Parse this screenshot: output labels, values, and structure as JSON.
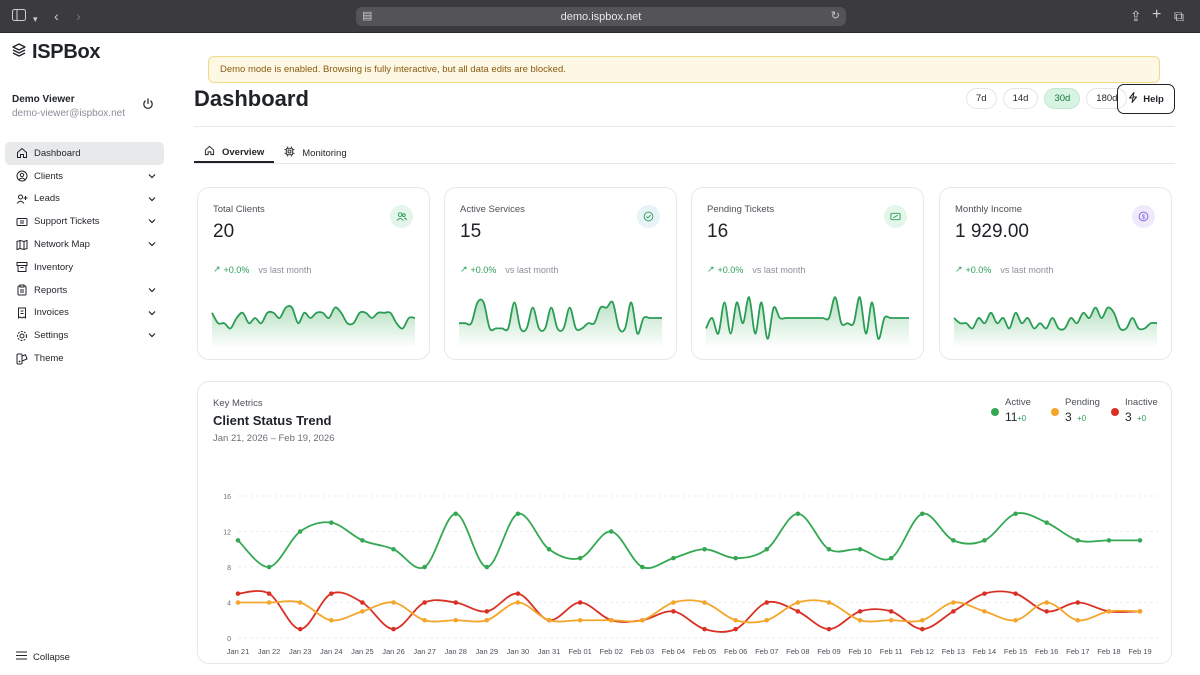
{
  "browser": {
    "url": "demo.ispbox.net"
  },
  "app": {
    "name": "ISPBox"
  },
  "user": {
    "name": "Demo Viewer",
    "email": "demo-viewer@ispbox.net"
  },
  "sidebar": {
    "items": [
      {
        "label": "Dashboard",
        "icon": "home-icon",
        "expandable": false,
        "active": true
      },
      {
        "label": "Clients",
        "icon": "user-circle-icon",
        "expandable": true
      },
      {
        "label": "Leads",
        "icon": "user-plus-icon",
        "expandable": true
      },
      {
        "label": "Support Tickets",
        "icon": "ticket-icon",
        "expandable": true
      },
      {
        "label": "Network Map",
        "icon": "map-icon",
        "expandable": true
      },
      {
        "label": "Inventory",
        "icon": "archive-icon",
        "expandable": false
      },
      {
        "label": "Reports",
        "icon": "clipboard-icon",
        "expandable": true
      },
      {
        "label": "Invoices",
        "icon": "invoice-icon",
        "expandable": true
      },
      {
        "label": "Settings",
        "icon": "gear-icon",
        "expandable": true
      },
      {
        "label": "Theme",
        "icon": "palette-icon",
        "expandable": false
      }
    ],
    "collapse_label": "Collapse"
  },
  "banner": {
    "text": "Demo mode is enabled. Browsing is fully interactive, but all data edits are blocked."
  },
  "header": {
    "title": "Dashboard",
    "ranges": [
      "7d",
      "14d",
      "30d",
      "180d"
    ],
    "selected_range": "30d",
    "help_label": "Help"
  },
  "tabs": [
    {
      "label": "Overview",
      "icon": "home-icon",
      "active": true
    },
    {
      "label": "Monitoring",
      "icon": "cpu-icon",
      "active": false
    }
  ],
  "kpis": [
    {
      "label": "Total Clients",
      "value": "20",
      "delta": "+0.0%",
      "vs": "vs last month",
      "icon": "users-icon",
      "accent": "#2a9d55",
      "spark": [
        6,
        4,
        4,
        3,
        5,
        6,
        4,
        5,
        4,
        6,
        6,
        5,
        7,
        7,
        4,
        6,
        5,
        6,
        6,
        5,
        7,
        6,
        4,
        4,
        6,
        6,
        5,
        6,
        6,
        6,
        4,
        3,
        5,
        5
      ]
    },
    {
      "label": "Active Services",
      "value": "15",
      "delta": "+0.0%",
      "vs": "vs last month",
      "icon": "check-circle-icon",
      "accent": "#2a9d55",
      "spark": [
        4,
        4,
        4,
        8,
        8,
        3,
        3,
        3,
        3,
        8,
        3,
        3,
        7,
        3,
        3,
        7,
        3,
        3,
        7,
        3,
        3,
        4,
        4,
        7,
        7,
        8,
        3,
        3,
        8,
        2,
        5,
        5,
        5,
        5
      ]
    },
    {
      "label": "Pending Tickets",
      "value": "16",
      "delta": "+0.0%",
      "vs": "vs last month",
      "icon": "ticket-icon",
      "accent": "#2a9d55",
      "spark": [
        3,
        5,
        2,
        8,
        2,
        8,
        4,
        9,
        2,
        8,
        1,
        7,
        5,
        5,
        5,
        5,
        5,
        5,
        5,
        5,
        5,
        9,
        4,
        4,
        4,
        9,
        2,
        8,
        1,
        5,
        5,
        5,
        5,
        5
      ]
    },
    {
      "label": "Monthly Income",
      "value": "1 929.00",
      "delta": "+0.0%",
      "vs": "vs last month",
      "icon": "dollar-circle-icon",
      "accent": "#7c5cdb",
      "spark": [
        5,
        4,
        4,
        3,
        5,
        4,
        6,
        4,
        5,
        3,
        6,
        4,
        5,
        3,
        4,
        3,
        5,
        3,
        3,
        5,
        4,
        6,
        5,
        7,
        5,
        7,
        6,
        3,
        3,
        5,
        3,
        3,
        4,
        4
      ]
    }
  ],
  "trend": {
    "kicker": "Key Metrics",
    "title": "Client Status Trend",
    "date_range": "Jan 21, 2026 – Feb 19, 2026",
    "legend": [
      {
        "name": "Active",
        "count": "11",
        "change": "+0",
        "color": "#34a853"
      },
      {
        "name": "Pending",
        "count": "3",
        "change": "+0",
        "color": "#f4a62a"
      },
      {
        "name": "Inactive",
        "count": "3",
        "change": "+0",
        "color": "#d93025"
      }
    ]
  },
  "chart_data": {
    "type": "line",
    "title": "Client Status Trend",
    "x": [
      "Jan 21",
      "Jan 22",
      "Jan 23",
      "Jan 24",
      "Jan 25",
      "Jan 26",
      "Jan 27",
      "Jan 28",
      "Jan 29",
      "Jan 30",
      "Jan 31",
      "Feb 01",
      "Feb 02",
      "Feb 03",
      "Feb 04",
      "Feb 05",
      "Feb 06",
      "Feb 07",
      "Feb 08",
      "Feb 09",
      "Feb 10",
      "Feb 11",
      "Feb 12",
      "Feb 13",
      "Feb 14",
      "Feb 15",
      "Feb 16",
      "Feb 17",
      "Feb 18",
      "Feb 19"
    ],
    "yticks": [
      0,
      4,
      8,
      12,
      16
    ],
    "ylim": [
      0,
      16
    ],
    "series": [
      {
        "name": "Active",
        "color": "#34a853",
        "values": [
          11,
          8,
          12,
          13,
          11,
          10,
          8,
          14,
          8,
          14,
          10,
          9,
          12,
          8,
          9,
          10,
          9,
          10,
          14,
          10,
          10,
          9,
          14,
          11,
          11,
          14,
          13,
          11,
          11,
          11
        ]
      },
      {
        "name": "Pending",
        "color": "#f4a62a",
        "values": [
          4,
          4,
          4,
          2,
          3,
          4,
          2,
          2,
          2,
          4,
          2,
          2,
          2,
          2,
          4,
          4,
          2,
          2,
          4,
          4,
          2,
          2,
          2,
          4,
          3,
          2,
          4,
          2,
          3,
          3
        ]
      },
      {
        "name": "Inactive",
        "color": "#d93025",
        "values": [
          5,
          5,
          1,
          5,
          4,
          1,
          4,
          4,
          3,
          5,
          2,
          4,
          2,
          2,
          3,
          1,
          1,
          4,
          3,
          1,
          3,
          3,
          1,
          3,
          5,
          5,
          3,
          4,
          3,
          3
        ]
      }
    ]
  }
}
